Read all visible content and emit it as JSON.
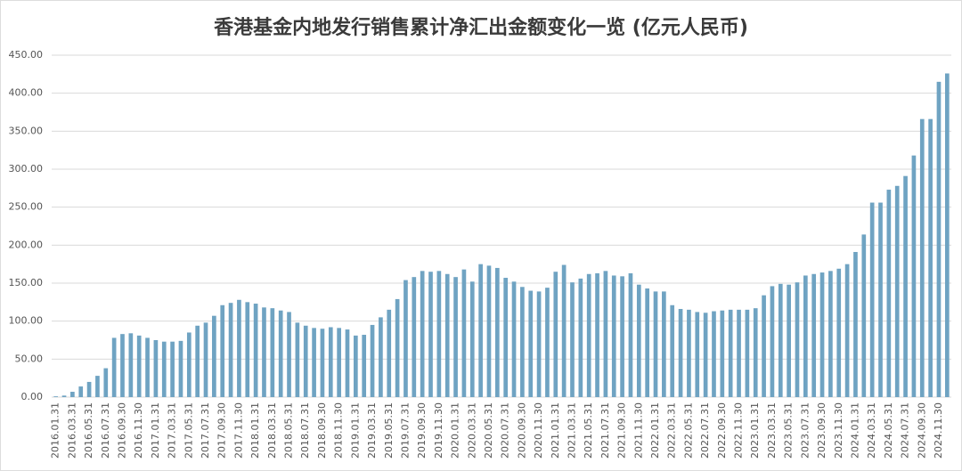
{
  "chart_data": {
    "type": "bar",
    "title": "香港基金内地发行销售累计净汇出金额变化一览 (亿元人民币)",
    "categories": [
      "2016.01.31",
      null,
      "2016.03.31",
      null,
      "2016.05.31",
      null,
      "2016.07.31",
      null,
      "2016.09.30",
      null,
      "2016.11.30",
      null,
      "2017.01.31",
      null,
      "2017.03.31",
      null,
      "2017.05.31",
      null,
      "2017.07.31",
      null,
      "2017.09.30",
      null,
      "2017.11.30",
      null,
      "2018.01.31",
      null,
      "2018.03.31",
      null,
      "2018.05.31",
      null,
      "2018.07.31",
      null,
      "2018.09.30",
      null,
      "2018.11.30",
      null,
      "2019.01.31",
      null,
      "2019.03.31",
      null,
      "2019.05.31",
      null,
      "2019.07.31",
      null,
      "2019.09.30",
      null,
      "2019.11.30",
      null,
      "2020.01.31",
      null,
      "2020.03.31",
      null,
      "2020.05.31",
      null,
      "2020.07.31",
      null,
      "2020.09.30",
      null,
      "2020.11.30",
      null,
      "2021.01.31",
      null,
      "2021.03.31",
      null,
      "2021.05.31",
      null,
      "2021.07.31",
      null,
      "2021.09.30",
      null,
      "2021.11.30",
      null,
      "2022.01.31",
      null,
      "2022.03.31",
      null,
      "2022.05.31",
      null,
      "2022.07.31",
      null,
      "2022.09.30",
      null,
      "2022.11.30",
      null,
      "2023.01.31",
      null,
      "2023.03.31",
      null,
      "2023.05.31",
      null,
      "2023.07.31",
      null,
      "2023.09.30",
      null,
      "2023.11.30",
      null,
      "2024.01.31",
      null,
      "2024.03.31",
      null,
      "2024.05.31",
      null,
      "2024.07.31",
      null,
      "2024.09.30",
      null,
      "2024.11.30",
      null
    ],
    "values": [
      1,
      2,
      7,
      14,
      20,
      28,
      38,
      78,
      83,
      84,
      81,
      78,
      75,
      73,
      73,
      74,
      85,
      94,
      98,
      107,
      121,
      124,
      128,
      125,
      123,
      118,
      117,
      114,
      112,
      98,
      94,
      91,
      90,
      92,
      91,
      89,
      81,
      82,
      95,
      105,
      115,
      129,
      154,
      158,
      166,
      165,
      166,
      162,
      158,
      168,
      152,
      175,
      173,
      170,
      157,
      152,
      145,
      140,
      139,
      144,
      165,
      174,
      151,
      156,
      162,
      163,
      166,
      160,
      159,
      163,
      148,
      143,
      139,
      139,
      121,
      116,
      115,
      112,
      111,
      113,
      114,
      115,
      115,
      115,
      117,
      134,
      146,
      149,
      148,
      151,
      160,
      162,
      164,
      166,
      169,
      175,
      191,
      214,
      256,
      256,
      273,
      278,
      291,
      318,
      366,
      366,
      415,
      426
    ],
    "color": "#6fa3c2",
    "ylim": [
      0,
      450
    ],
    "yticks": [
      {
        "value": 0,
        "label": "0.00"
      },
      {
        "value": 50,
        "label": "50.00"
      },
      {
        "value": 100,
        "label": "100.00"
      },
      {
        "value": 150,
        "label": "150.00"
      },
      {
        "value": 200,
        "label": "200.00"
      },
      {
        "value": 250,
        "label": "250.00"
      },
      {
        "value": 300,
        "label": "300.00"
      },
      {
        "value": 350,
        "label": "350.00"
      },
      {
        "value": 400,
        "label": "400.00"
      },
      {
        "value": 450,
        "label": "450.00"
      }
    ],
    "grid": true
  }
}
